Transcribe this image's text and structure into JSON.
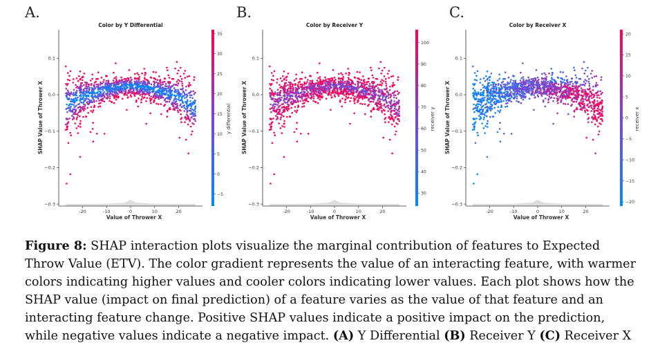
{
  "panels": [
    {
      "letter": "A."
    },
    {
      "letter": "B."
    },
    {
      "letter": "C."
    }
  ],
  "colors": {
    "low": "#008bfb",
    "mid": "#7b45d6",
    "high": "#ff0051",
    "axis": "#333333",
    "density": "#dddddd"
  },
  "chart_data": [
    {
      "type": "scatter",
      "title": "Color by Y Differential",
      "xlabel": "Value of Thrower X",
      "ylabel": "SHAP Value of Thrower X",
      "xlim": [
        -27,
        27
      ],
      "ylim": [
        -0.3,
        0.17
      ],
      "xticks": [
        -20,
        -10,
        0,
        10,
        20
      ],
      "yticks": [
        0.1,
        0.0,
        -0.1,
        -0.2,
        -0.3
      ],
      "trend": {
        "x": [
          -27,
          -20,
          -10,
          0,
          10,
          20,
          27
        ],
        "y": [
          -0.03,
          -0.005,
          0.015,
          0.025,
          0.015,
          -0.005,
          -0.035
        ]
      },
      "color_pattern": "high values on upper and lower edges of band, low values in middle",
      "colorbar": {
        "label": "y differential",
        "ticks": [
          35,
          30,
          25,
          20,
          15,
          10,
          5,
          0,
          -5
        ],
        "range": [
          -8,
          36
        ]
      }
    },
    {
      "type": "scatter",
      "title": "Color by Receiver Y",
      "xlabel": "Value of Thrower X",
      "ylabel": "SHAP Value of Thrower X",
      "xlim": [
        -27,
        27
      ],
      "ylim": [
        -0.3,
        0.17
      ],
      "xticks": [
        -20,
        -10,
        0,
        10,
        20
      ],
      "yticks": [
        0.1,
        0.0,
        -0.1,
        -0.2,
        -0.3
      ],
      "trend": {
        "x": [
          -27,
          -20,
          -10,
          0,
          10,
          20,
          27
        ],
        "y": [
          -0.03,
          -0.005,
          0.015,
          0.025,
          0.015,
          -0.005,
          -0.035
        ]
      },
      "color_pattern": "mostly high values, mixed",
      "colorbar": {
        "label": "receiver y",
        "ticks": [
          100,
          90,
          80,
          70,
          60,
          50,
          40,
          30
        ],
        "range": [
          24,
          106
        ]
      }
    },
    {
      "type": "scatter",
      "title": "Color by Receiver X",
      "xlabel": "Value of Thrower X",
      "ylabel": "SHAP Value of Thrower X",
      "xlim": [
        -27,
        27
      ],
      "ylim": [
        -0.3,
        0.17
      ],
      "xticks": [
        -20,
        -10,
        0,
        10,
        20
      ],
      "yticks": [
        0.1,
        0.0,
        -0.1,
        -0.2,
        -0.3
      ],
      "trend": {
        "x": [
          -27,
          -20,
          -10,
          0,
          10,
          20,
          27
        ],
        "y": [
          -0.03,
          -0.005,
          0.015,
          0.025,
          0.015,
          -0.005,
          -0.035
        ]
      },
      "color_pattern": "low values on left, high values on right",
      "colorbar": {
        "label": "receiver x",
        "ticks": [
          20,
          15,
          10,
          5,
          0,
          -5,
          -10,
          -15,
          -20
        ],
        "range": [
          -21,
          21
        ]
      }
    }
  ],
  "caption": {
    "label": "Figure 8:",
    "body": " SHAP interaction plots visualize the marginal contribution of features to Expected Throw Value (ETV). The color gradient represents the value of an interacting feature, with warmer colors indicating higher values and cooler colors indicating lower values.  Each plot shows how the SHAP value (impact on final prediction) of a feature varies as the value of that feature and an interacting feature change. Positive SHAP values indicate a positive impact on the prediction, while negative values indicate a negative impact. ",
    "a": "(A)",
    "a_text": " Y Differential ",
    "b": "(B)",
    "b_text": " Receiver Y ",
    "c": "(C)",
    "c_text": " Receiver X"
  }
}
